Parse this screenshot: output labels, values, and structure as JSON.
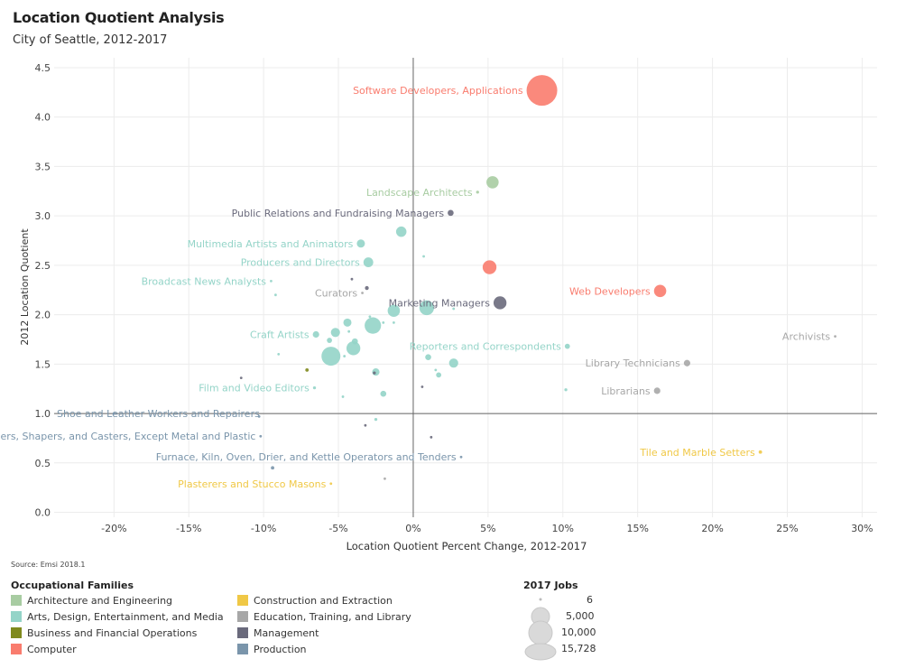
{
  "title": "Location Quotient Analysis",
  "subtitle": "City of Seattle, 2012-2017",
  "source": "Source: Emsi 2018.1",
  "legend": {
    "families_title": "Occupational Families",
    "families": [
      {
        "name": "Architecture and Engineering",
        "color": "#a8cca2"
      },
      {
        "name": "Arts, Design, Entertainment, and Media",
        "color": "#94d4c8"
      },
      {
        "name": "Business and Financial Operations",
        "color": "#7f8a1e"
      },
      {
        "name": "Computer",
        "color": "#f97c6e"
      },
      {
        "name": "Construction and Extraction",
        "color": "#f0c846"
      },
      {
        "name": "Education, Training, and Library",
        "color": "#a7a7a7"
      },
      {
        "name": "Management",
        "color": "#6a6a7c"
      },
      {
        "name": "Production",
        "color": "#7a95ab"
      }
    ],
    "size_title": "2017 Jobs",
    "sizes": [
      "6",
      "5,000",
      "10,000",
      "15,728"
    ]
  },
  "chart_data": {
    "type": "scatter",
    "title": "Location Quotient Analysis",
    "subtitle": "City of Seattle, 2012-2017",
    "xlabel": "Location Quotient Percent Change, 2012-2017",
    "ylabel": "2012 Location Quotient",
    "xlim": [
      -24,
      31
    ],
    "ylim": [
      -0.05,
      4.6
    ],
    "xticks": [
      -20,
      -15,
      -10,
      -5,
      0,
      5,
      10,
      15,
      20,
      25,
      30
    ],
    "xtick_labels": [
      "-20%",
      "-15%",
      "-10%",
      "-5%",
      "0%",
      "5%",
      "10%",
      "15%",
      "20%",
      "25%",
      "30%"
    ],
    "yticks": [
      0.0,
      0.5,
      1.0,
      1.5,
      2.0,
      2.5,
      3.0,
      3.5,
      4.0,
      4.5
    ],
    "ytick_labels": [
      "0.0",
      "0.5",
      "1.0",
      "1.5",
      "2.0",
      "2.5",
      "3.0",
      "3.5",
      "4.0",
      "4.5"
    ],
    "reference_lines": {
      "x": 0,
      "y": 1.0
    },
    "grid": true,
    "points": [
      {
        "x": 8.6,
        "y": 4.27,
        "jobs": 15728,
        "family": "Computer",
        "label": "Software Developers, Applications"
      },
      {
        "x": 5.3,
        "y": 3.34,
        "jobs": 2500,
        "family": "Architecture and Engineering"
      },
      {
        "x": 4.3,
        "y": 3.24,
        "jobs": 150,
        "family": "Architecture and Engineering",
        "label": "Landscape Architects"
      },
      {
        "x": 2.5,
        "y": 3.03,
        "jobs": 600,
        "family": "Management",
        "label": "Public Relations and Fundraising Managers"
      },
      {
        "x": -0.8,
        "y": 2.84,
        "jobs": 1800,
        "family": "Arts, Design, Entertainment, and Media"
      },
      {
        "x": -3.5,
        "y": 2.72,
        "jobs": 1100,
        "family": "Arts, Design, Entertainment, and Media",
        "label": "Multimedia Artists and Animators"
      },
      {
        "x": 0.7,
        "y": 2.59,
        "jobs": 60,
        "family": "Arts, Design, Entertainment, and Media"
      },
      {
        "x": -3.0,
        "y": 2.53,
        "jobs": 1600,
        "family": "Arts, Design, Entertainment, and Media",
        "label": "Producers and Directors"
      },
      {
        "x": 5.1,
        "y": 2.48,
        "jobs": 3200,
        "family": "Computer"
      },
      {
        "x": 16.5,
        "y": 2.24,
        "jobs": 2500,
        "family": "Computer",
        "label": "Web Developers"
      },
      {
        "x": -9.5,
        "y": 2.34,
        "jobs": 40,
        "family": "Arts, Design, Entertainment, and Media",
        "label": "Broadcast News Analysts"
      },
      {
        "x": -4.1,
        "y": 2.36,
        "jobs": 40,
        "family": "Management"
      },
      {
        "x": -3.1,
        "y": 2.27,
        "jobs": 250,
        "family": "Management"
      },
      {
        "x": -3.4,
        "y": 2.22,
        "jobs": 60,
        "family": "Education, Training, and Library",
        "label": "Curators"
      },
      {
        "x": -9.2,
        "y": 2.2,
        "jobs": 100,
        "family": "Arts, Design, Entertainment, and Media"
      },
      {
        "x": 5.8,
        "y": 2.12,
        "jobs": 2800,
        "family": "Management",
        "label": "Marketing Managers"
      },
      {
        "x": 0.9,
        "y": 2.07,
        "jobs": 3600,
        "family": "Arts, Design, Entertainment, and Media"
      },
      {
        "x": -1.3,
        "y": 2.04,
        "jobs": 2500,
        "family": "Arts, Design, Entertainment, and Media"
      },
      {
        "x": 2.7,
        "y": 2.06,
        "jobs": 60,
        "family": "Arts, Design, Entertainment, and Media"
      },
      {
        "x": -4.4,
        "y": 1.92,
        "jobs": 1100,
        "family": "Arts, Design, Entertainment, and Media"
      },
      {
        "x": -2.7,
        "y": 1.89,
        "jobs": 4500,
        "family": "Arts, Design, Entertainment, and Media"
      },
      {
        "x": -2.9,
        "y": 1.98,
        "jobs": 100,
        "family": "Arts, Design, Entertainment, and Media"
      },
      {
        "x": -1.3,
        "y": 1.92,
        "jobs": 80,
        "family": "Arts, Design, Entertainment, and Media"
      },
      {
        "x": -2.0,
        "y": 1.92,
        "jobs": 80,
        "family": "Arts, Design, Entertainment, and Media"
      },
      {
        "x": -6.5,
        "y": 1.8,
        "jobs": 700,
        "family": "Arts, Design, Entertainment, and Media",
        "label": "Craft Artists"
      },
      {
        "x": -5.2,
        "y": 1.82,
        "jobs": 1400,
        "family": "Arts, Design, Entertainment, and Media"
      },
      {
        "x": -5.6,
        "y": 1.74,
        "jobs": 450,
        "family": "Arts, Design, Entertainment, and Media"
      },
      {
        "x": -4.3,
        "y": 1.83,
        "jobs": 60,
        "family": "Arts, Design, Entertainment, and Media"
      },
      {
        "x": -4.0,
        "y": 1.66,
        "jobs": 3200,
        "family": "Arts, Design, Entertainment, and Media"
      },
      {
        "x": -3.9,
        "y": 1.73,
        "jobs": 600,
        "family": "Arts, Design, Entertainment, and Media"
      },
      {
        "x": -5.5,
        "y": 1.58,
        "jobs": 6000,
        "family": "Arts, Design, Entertainment, and Media"
      },
      {
        "x": -9.0,
        "y": 1.6,
        "jobs": 100,
        "family": "Arts, Design, Entertainment, and Media"
      },
      {
        "x": -7.1,
        "y": 1.44,
        "jobs": 200,
        "family": "Business and Financial Operations"
      },
      {
        "x": -2.5,
        "y": 1.42,
        "jobs": 900,
        "family": "Arts, Design, Entertainment, and Media"
      },
      {
        "x": -2.6,
        "y": 1.41,
        "jobs": 150,
        "family": "Management"
      },
      {
        "x": -4.6,
        "y": 1.58,
        "jobs": 60,
        "family": "Arts, Design, Entertainment, and Media"
      },
      {
        "x": 10.3,
        "y": 1.68,
        "jobs": 450,
        "family": "Arts, Design, Entertainment, and Media",
        "label": "Reporters and Correspondents"
      },
      {
        "x": 1.0,
        "y": 1.57,
        "jobs": 600,
        "family": "Arts, Design, Entertainment, and Media"
      },
      {
        "x": 2.7,
        "y": 1.51,
        "jobs": 1400,
        "family": "Arts, Design, Entertainment, and Media"
      },
      {
        "x": 1.7,
        "y": 1.39,
        "jobs": 450,
        "family": "Arts, Design, Entertainment, and Media"
      },
      {
        "x": 1.5,
        "y": 1.44,
        "jobs": 100,
        "family": "Arts, Design, Entertainment, and Media"
      },
      {
        "x": 18.3,
        "y": 1.51,
        "jobs": 700,
        "family": "Education, Training, and Library",
        "label": "Library Technicians"
      },
      {
        "x": 28.2,
        "y": 1.78,
        "jobs": 60,
        "family": "Education, Training, and Library",
        "label": "Archivists"
      },
      {
        "x": -11.5,
        "y": 1.36,
        "jobs": 40,
        "family": "Management"
      },
      {
        "x": -6.6,
        "y": 1.26,
        "jobs": 150,
        "family": "Arts, Design, Entertainment, and Media",
        "label": "Film and Video Editors"
      },
      {
        "x": -4.7,
        "y": 1.17,
        "jobs": 80,
        "family": "Arts, Design, Entertainment, and Media"
      },
      {
        "x": -2.0,
        "y": 1.2,
        "jobs": 600,
        "family": "Arts, Design, Entertainment, and Media"
      },
      {
        "x": 0.6,
        "y": 1.27,
        "jobs": 40,
        "family": "Management"
      },
      {
        "x": 10.2,
        "y": 1.24,
        "jobs": 150,
        "family": "Arts, Design, Entertainment, and Media"
      },
      {
        "x": 16.3,
        "y": 1.23,
        "jobs": 700,
        "family": "Education, Training, and Library",
        "label": "Librarians"
      },
      {
        "x": -20.0,
        "y": 1.0,
        "jobs": 30,
        "family": "Production",
        "label": "Shoe and Leather Workers and Repairers"
      },
      {
        "x": -10.3,
        "y": 0.97,
        "jobs": 40,
        "family": "Production"
      },
      {
        "x": -2.5,
        "y": 0.94,
        "jobs": 150,
        "family": "Arts, Design, Entertainment, and Media"
      },
      {
        "x": -3.2,
        "y": 0.88,
        "jobs": 60,
        "family": "Management"
      },
      {
        "x": -10.2,
        "y": 0.77,
        "jobs": 40,
        "family": "Production",
        "label": "Molders, Shapers, and Casters, Except Metal and Plastic"
      },
      {
        "x": 1.2,
        "y": 0.76,
        "jobs": 60,
        "family": "Management"
      },
      {
        "x": 3.2,
        "y": 0.56,
        "jobs": 40,
        "family": "Production",
        "label": "Furnace, Kiln, Oven, Drier, and Kettle Operators and Tenders"
      },
      {
        "x": 23.2,
        "y": 0.61,
        "jobs": 200,
        "family": "Construction and Extraction",
        "label": "Tile and Marble Setters"
      },
      {
        "x": -9.4,
        "y": 0.45,
        "jobs": 200,
        "family": "Production"
      },
      {
        "x": -5.5,
        "y": 0.29,
        "jobs": 40,
        "family": "Construction and Extraction",
        "label": "Plasterers and Stucco Masons"
      },
      {
        "x": -1.9,
        "y": 0.34,
        "jobs": 40,
        "family": "Education, Training, and Library"
      }
    ]
  }
}
